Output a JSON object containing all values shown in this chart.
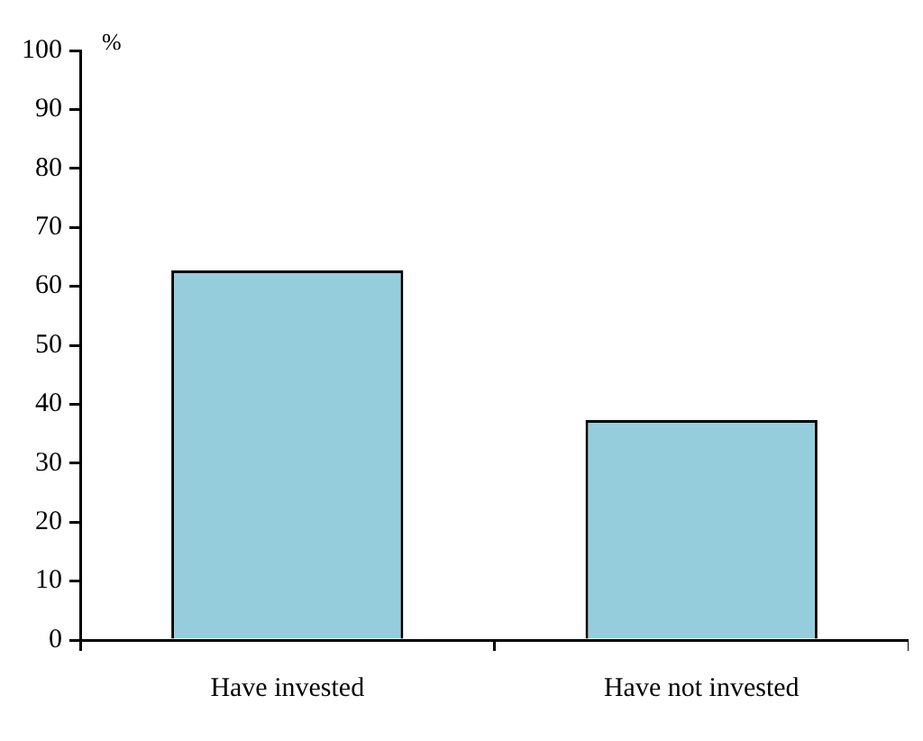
{
  "chart_data": {
    "type": "bar",
    "ylabel": "%",
    "categories": [
      "Have invested",
      "Have not invested"
    ],
    "values": [
      62.7,
      37.3
    ],
    "color": "#95cddd",
    "ylim": [
      0,
      100
    ],
    "yticks": [
      0,
      10,
      20,
      30,
      40,
      50,
      60,
      70,
      80,
      90,
      100
    ],
    "grid": false,
    "legend": false
  }
}
